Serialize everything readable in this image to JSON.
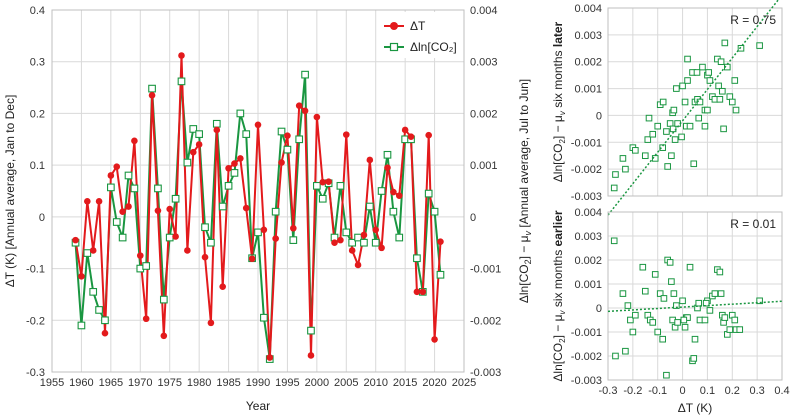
{
  "chart_data": [
    {
      "type": "line",
      "xlabel": "Year",
      "ylabel_left": "ΔT (K) [Annual average, Jan to Dec]",
      "ylabel_right_parts": [
        "Δln[CO",
        "2",
        "] − μ",
        "v",
        " [Annual average, Jul to Jun]"
      ],
      "xlim": [
        1955,
        2025
      ],
      "x_ticks": [
        "1955",
        "1960",
        "1965",
        "1970",
        "1975",
        "1980",
        "1985",
        "1990",
        "1995",
        "2000",
        "2005",
        "2010",
        "2015",
        "2020",
        "2025"
      ],
      "ylim_left": [
        -0.3,
        0.4
      ],
      "y_ticks_left": [
        "-0.3",
        "-0.2",
        "-0.1",
        "0",
        "0.1",
        "0.2",
        "0.3",
        "0.4"
      ],
      "ylim_right": [
        -0.003,
        0.004
      ],
      "y_ticks_right": [
        "-0.003",
        "-0.002",
        "-0.001",
        "0",
        "0.001",
        "0.002",
        "0.003",
        "0.004"
      ],
      "grid": true,
      "legend_position": "top-right",
      "series": [
        {
          "name": "ΔT",
          "axis": "left",
          "color": "#e31a1c",
          "marker": "filled-circle",
          "x": [
            1959,
            1960,
            1961,
            1962,
            1963,
            1964,
            1965,
            1966,
            1967,
            1968,
            1969,
            1970,
            1971,
            1972,
            1973,
            1974,
            1975,
            1976,
            1977,
            1978,
            1979,
            1980,
            1981,
            1982,
            1983,
            1984,
            1985,
            1986,
            1987,
            1988,
            1989,
            1990,
            1991,
            1992,
            1993,
            1994,
            1995,
            1996,
            1997,
            1998,
            1999,
            2000,
            2001,
            2002,
            2003,
            2004,
            2005,
            2006,
            2007,
            2008,
            2009,
            2010,
            2011,
            2012,
            2013,
            2014,
            2015,
            2016,
            2017,
            2018,
            2019,
            2020,
            2021
          ],
          "values": [
            -0.045,
            -0.115,
            0.03,
            -0.065,
            0.03,
            -0.225,
            0.08,
            0.097,
            0.01,
            0.02,
            0.147,
            -0.075,
            -0.197,
            0.235,
            0.012,
            -0.23,
            0.015,
            -0.038,
            0.312,
            -0.065,
            0.125,
            0.14,
            -0.078,
            -0.205,
            0.168,
            -0.135,
            0.094,
            0.103,
            0.113,
            0.017,
            -0.081,
            0.178,
            -0.025,
            -0.272,
            -0.042,
            0.105,
            0.157,
            -0.022,
            0.215,
            0.205,
            -0.268,
            0.193,
            0.067,
            0.068,
            -0.05,
            -0.045,
            0.159,
            -0.065,
            -0.093,
            -0.035,
            0.11,
            -0.025,
            -0.06,
            0.095,
            0.048,
            0.041,
            0.168,
            0.155,
            -0.145,
            -0.145,
            0.158,
            -0.237,
            -0.048
          ]
        },
        {
          "name": "Δln[CO₂]",
          "axis": "right",
          "color": "#1a9641",
          "marker": "open-square",
          "x": [
            1959,
            1960,
            1961,
            1962,
            1963,
            1964,
            1965,
            1966,
            1967,
            1968,
            1969,
            1970,
            1971,
            1972,
            1973,
            1974,
            1975,
            1976,
            1977,
            1978,
            1979,
            1980,
            1981,
            1982,
            1983,
            1984,
            1985,
            1986,
            1987,
            1988,
            1989,
            1990,
            1991,
            1992,
            1993,
            1994,
            1995,
            1996,
            1997,
            1998,
            1999,
            2000,
            2001,
            2002,
            2003,
            2004,
            2005,
            2006,
            2007,
            2008,
            2009,
            2010,
            2011,
            2012,
            2013,
            2014,
            2015,
            2016,
            2017,
            2018,
            2019,
            2020,
            2021
          ],
          "values": [
            -0.0005,
            -0.0021,
            -0.0007,
            -0.00145,
            -0.0018,
            -0.002,
            0.00057,
            -0.0001,
            -0.0004,
            0.0008,
            0.00055,
            -0.001,
            -0.00095,
            0.00248,
            0.00055,
            -0.0016,
            -0.0004,
            0.00035,
            0.00262,
            0.00105,
            0.0017,
            0.0016,
            -0.0002,
            -0.0005,
            0.0018,
            0.0002,
            0.0006,
            0.00085,
            0.002,
            0.0016,
            -0.0008,
            -0.0003,
            -0.00195,
            -0.00275,
            0.0001,
            0.00165,
            0.0013,
            -0.00045,
            0.0015,
            0.00275,
            -0.0022,
            0.0006,
            0.00035,
            0.00065,
            -0.0004,
            0.0006,
            -0.0003,
            -0.0005,
            -0.0004,
            -0.0005,
            0.0002,
            -0.0005,
            0.0005,
            0.0012,
            0.0001,
            -0.0004,
            0.0015,
            0.0015,
            -0.0008,
            -0.00145,
            0.00045,
            0.0001,
            -0.00112
          ]
        }
      ]
    },
    {
      "type": "scatter",
      "xlim": [
        -0.3,
        0.4
      ],
      "ylim": [
        -0.003,
        0.004
      ],
      "y_ticks": [
        "-0.003",
        "-0.002",
        "-0.001",
        "0",
        "0.001",
        "0.002",
        "0.003",
        "0.004"
      ],
      "ylabel_parts": [
        "Δln[CO",
        "2",
        "] − μ",
        "v",
        " six months ",
        "later"
      ],
      "annotation": "R = 0.75",
      "trendline": {
        "slope": 0.0117,
        "intercept": -0.0002,
        "style": "dotted"
      },
      "color": "#1a9641",
      "grid": true,
      "points": [
        [
          -0.275,
          -0.0027
        ],
        [
          -0.27,
          -0.0022
        ],
        [
          -0.24,
          -0.0016
        ],
        [
          -0.23,
          -0.002
        ],
        [
          -0.2,
          -0.0012
        ],
        [
          -0.19,
          -0.0013
        ],
        [
          -0.15,
          -0.0015
        ],
        [
          -0.14,
          -0.0009
        ],
        [
          -0.135,
          -0.0001
        ],
        [
          -0.12,
          -0.0007
        ],
        [
          -0.11,
          -0.0016
        ],
        [
          -0.1,
          -0.0004
        ],
        [
          -0.09,
          0.0004
        ],
        [
          -0.08,
          -0.0012
        ],
        [
          -0.078,
          0.0005
        ],
        [
          -0.065,
          -0.0006
        ],
        [
          -0.06,
          -0.0019
        ],
        [
          -0.05,
          -0.0003
        ],
        [
          -0.045,
          -0.0015
        ],
        [
          -0.04,
          0.0001
        ],
        [
          -0.038,
          -0.0005
        ],
        [
          -0.035,
          0.0002
        ],
        [
          -0.03,
          -0.0009
        ],
        [
          -0.025,
          0.001
        ],
        [
          -0.02,
          -0.0003
        ],
        [
          0.0,
          0.0011
        ],
        [
          0.01,
          0.0005
        ],
        [
          0.015,
          -0.0004
        ],
        [
          0.02,
          0.0013
        ],
        [
          0.03,
          -0.0004
        ],
        [
          0.04,
          0.0016
        ],
        [
          0.045,
          -0.0018
        ],
        [
          0.05,
          0.0005
        ],
        [
          0.06,
          0.0006
        ],
        [
          0.065,
          -0.0001
        ],
        [
          0.07,
          0.0005
        ],
        [
          0.08,
          0.0018
        ],
        [
          0.09,
          0.0002
        ],
        [
          0.1,
          0.0015
        ],
        [
          0.105,
          0.0016
        ],
        [
          0.11,
          0.0013
        ],
        [
          0.12,
          0.0007
        ],
        [
          0.13,
          0.0006
        ],
        [
          0.14,
          0.0021
        ],
        [
          0.145,
          0.0011
        ],
        [
          0.15,
          0.0006
        ],
        [
          0.155,
          0.002
        ],
        [
          0.16,
          0.0009
        ],
        [
          0.165,
          -0.0005
        ],
        [
          0.17,
          0.0027
        ],
        [
          0.18,
          0.0018
        ],
        [
          0.19,
          0.0007
        ],
        [
          0.2,
          0.0005
        ],
        [
          0.21,
          0.0013
        ],
        [
          0.215,
          0.0002
        ],
        [
          0.235,
          0.0025
        ],
        [
          0.31,
          0.0026
        ],
        [
          0.02,
          0.0021
        ],
        [
          0.058,
          0.0016
        ],
        [
          0.09,
          -0.0004
        ],
        [
          -0.004,
          -0.0008
        ],
        [
          0.1,
          0.0002
        ]
      ]
    },
    {
      "type": "scatter",
      "xlim": [
        -0.3,
        0.4
      ],
      "ylim": [
        -0.003,
        0.004
      ],
      "x_ticks": [
        "-0.3",
        "-0.2",
        "-0.1",
        "0",
        "0.1",
        "0.2",
        "0.3",
        "0.4"
      ],
      "y_ticks": [
        "-0.003",
        "-0.002",
        "-0.001",
        "0",
        "0.001",
        "0.002",
        "0.003",
        "0.004"
      ],
      "xlabel": "ΔT (K)",
      "ylabel_parts": [
        "Δln[CO",
        "2",
        "] − μ",
        "v",
        " six months ",
        "earlier"
      ],
      "annotation": "R = 0.01",
      "trendline": {
        "slope": 0.0006,
        "intercept": 4e-05,
        "style": "dotted"
      },
      "color": "#1a9641",
      "grid": true,
      "points": [
        [
          -0.275,
          0.0028
        ],
        [
          -0.27,
          -0.002
        ],
        [
          -0.24,
          0.0006
        ],
        [
          -0.23,
          -0.0018
        ],
        [
          -0.22,
          0.0001
        ],
        [
          -0.21,
          -0.0005
        ],
        [
          -0.2,
          -0.001
        ],
        [
          -0.19,
          -0.0003
        ],
        [
          -0.16,
          0.0017
        ],
        [
          -0.15,
          0.0007
        ],
        [
          -0.14,
          -0.0003
        ],
        [
          -0.13,
          -0.0005
        ],
        [
          -0.12,
          -0.0006
        ],
        [
          -0.11,
          0.0014
        ],
        [
          -0.1,
          -0.001
        ],
        [
          -0.09,
          0.0006
        ],
        [
          -0.08,
          -0.0013
        ],
        [
          -0.075,
          0.0004
        ],
        [
          -0.065,
          -0.0028
        ],
        [
          -0.06,
          0.002
        ],
        [
          -0.05,
          0.0019
        ],
        [
          -0.045,
          0.0011
        ],
        [
          -0.04,
          -0.0005
        ],
        [
          -0.035,
          0.0006
        ],
        [
          -0.03,
          -0.0008
        ],
        [
          -0.025,
          0.0001
        ],
        [
          -0.02,
          -0.0006
        ],
        [
          0.0,
          0.0003
        ],
        [
          0.01,
          -0.0008
        ],
        [
          0.015,
          -0.0004
        ],
        [
          0.02,
          -0.0004
        ],
        [
          0.03,
          0.0017
        ],
        [
          0.04,
          -0.0022
        ],
        [
          0.045,
          -0.0021
        ],
        [
          0.05,
          -0.0013
        ],
        [
          0.06,
          0.0
        ],
        [
          0.065,
          0.0002
        ],
        [
          0.07,
          -0.0005
        ],
        [
          0.09,
          -0.0005
        ],
        [
          0.1,
          0.0003
        ],
        [
          0.11,
          -0.0001
        ],
        [
          0.12,
          0.0005
        ],
        [
          0.13,
          0.0006
        ],
        [
          0.14,
          0.0016
        ],
        [
          0.15,
          0.0015
        ],
        [
          0.155,
          0.0006
        ],
        [
          0.16,
          -0.0003
        ],
        [
          0.165,
          -0.0006
        ],
        [
          0.17,
          -0.0004
        ],
        [
          0.18,
          -0.0011
        ],
        [
          0.19,
          -0.0009
        ],
        [
          0.2,
          -0.0003
        ],
        [
          0.21,
          -0.0005
        ],
        [
          0.215,
          -0.0009
        ],
        [
          0.23,
          -0.0009
        ],
        [
          0.31,
          0.0003
        ],
        [
          0.005,
          -0.0005
        ],
        [
          0.095,
          0.0002
        ]
      ]
    }
  ]
}
